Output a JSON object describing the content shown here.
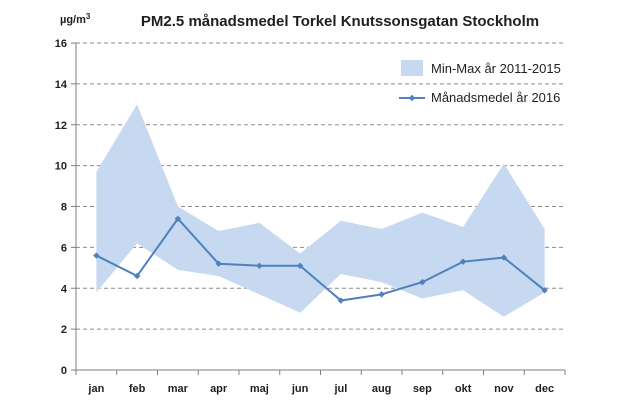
{
  "chart_data": {
    "type": "line",
    "title": "PM2.5 månadsmedel Torkel Knutssonsgatan Stockholm",
    "ylabel_base": "µg/m",
    "ylabel_sup": "3",
    "categories": [
      "jan",
      "feb",
      "mar",
      "apr",
      "maj",
      "jun",
      "jul",
      "aug",
      "sep",
      "okt",
      "nov",
      "dec"
    ],
    "ylim": [
      0,
      16
    ],
    "yticks": [
      0,
      2,
      4,
      6,
      8,
      10,
      12,
      14,
      16
    ],
    "grid": true,
    "legend_position": "top-right",
    "band": {
      "name": "Min-Max år 2011-2015",
      "color": "#c6d9f1",
      "min": [
        3.8,
        6.2,
        4.9,
        4.6,
        3.7,
        2.8,
        4.7,
        4.3,
        3.5,
        3.9,
        2.6,
        3.8
      ],
      "max": [
        9.7,
        13.0,
        8.0,
        6.8,
        7.2,
        5.7,
        7.3,
        6.9,
        7.7,
        7.0,
        10.1,
        6.9
      ]
    },
    "series": [
      {
        "name": "Månadsmedel år 2016",
        "color": "#4f81bd",
        "values": [
          5.6,
          4.6,
          7.4,
          5.2,
          5.1,
          5.1,
          3.4,
          3.7,
          4.3,
          5.3,
          5.5,
          3.9
        ]
      }
    ]
  }
}
